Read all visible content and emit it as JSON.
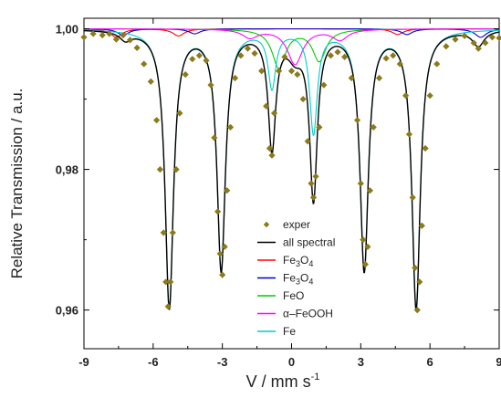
{
  "chart_data": {
    "type": "line",
    "title": "",
    "xlabel": "V / mm s",
    "xlabel_sup": "-1",
    "ylabel": "Relative Transmission / a.u.",
    "xlim": [
      -9,
      9
    ],
    "ylim": [
      0.9545,
      1.0015
    ],
    "x_ticks": [
      -9,
      -6,
      -3,
      0,
      3,
      6,
      9
    ],
    "x_tick_labels": [
      "-9",
      "-6",
      "-3",
      "0",
      "3",
      "6",
      "9"
    ],
    "y_ticks": [
      0.96,
      0.98,
      1.0
    ],
    "y_tick_labels": [
      "0,96",
      "0,98",
      "1,00"
    ],
    "grid": false,
    "legend_position": "center-right",
    "series": [
      {
        "name": "exper",
        "kind": "scatter",
        "color": "#8a7a1a",
        "points": [
          [
            -9.0,
            0.9988
          ],
          [
            -8.6,
            0.9993
          ],
          [
            -8.2,
            0.9991
          ],
          [
            -7.9,
            0.9993
          ],
          [
            -7.6,
            0.9985
          ],
          [
            -7.3,
            0.9991
          ],
          [
            -7.0,
            0.9984
          ],
          [
            -6.7,
            0.9973
          ],
          [
            -6.4,
            0.995
          ],
          [
            -6.1,
            0.9925
          ],
          [
            -5.85,
            0.987
          ],
          [
            -5.7,
            0.98
          ],
          [
            -5.55,
            0.971
          ],
          [
            -5.45,
            0.964
          ],
          [
            -5.35,
            0.9605
          ],
          [
            -5.25,
            0.964
          ],
          [
            -5.15,
            0.971
          ],
          [
            -5.0,
            0.98
          ],
          [
            -4.85,
            0.988
          ],
          [
            -4.6,
            0.9935
          ],
          [
            -4.3,
            0.9957
          ],
          [
            -4.0,
            0.9962
          ],
          [
            -3.7,
            0.9955
          ],
          [
            -3.5,
            0.992
          ],
          [
            -3.35,
            0.9845
          ],
          [
            -3.2,
            0.974
          ],
          [
            -3.1,
            0.968
          ],
          [
            -3.0,
            0.965
          ],
          [
            -2.9,
            0.969
          ],
          [
            -2.8,
            0.977
          ],
          [
            -2.65,
            0.986
          ],
          [
            -2.45,
            0.993
          ],
          [
            -2.2,
            0.9962
          ],
          [
            -1.9,
            0.9972
          ],
          [
            -1.6,
            0.9965
          ],
          [
            -1.3,
            0.994
          ],
          [
            -1.1,
            0.989
          ],
          [
            -0.95,
            0.983
          ],
          [
            -0.85,
            0.982
          ],
          [
            -0.75,
            0.988
          ],
          [
            -0.55,
            0.994
          ],
          [
            -0.3,
            0.996
          ],
          [
            0.0,
            0.994
          ],
          [
            0.25,
            0.9935
          ],
          [
            0.5,
            0.99
          ],
          [
            0.7,
            0.984
          ],
          [
            0.85,
            0.978
          ],
          [
            0.95,
            0.976
          ],
          [
            1.05,
            0.979
          ],
          [
            1.2,
            0.986
          ],
          [
            1.4,
            0.992
          ],
          [
            1.7,
            0.9962
          ],
          [
            2.0,
            0.9967
          ],
          [
            2.3,
            0.996
          ],
          [
            2.6,
            0.993
          ],
          [
            2.85,
            0.987
          ],
          [
            3.0,
            0.978
          ],
          [
            3.1,
            0.97
          ],
          [
            3.2,
            0.9665
          ],
          [
            3.3,
            0.969
          ],
          [
            3.4,
            0.977
          ],
          [
            3.55,
            0.986
          ],
          [
            3.8,
            0.993
          ],
          [
            4.1,
            0.9958
          ],
          [
            4.4,
            0.9962
          ],
          [
            4.7,
            0.995
          ],
          [
            4.95,
            0.9905
          ],
          [
            5.1,
            0.985
          ],
          [
            5.25,
            0.976
          ],
          [
            5.35,
            0.966
          ],
          [
            5.45,
            0.96
          ],
          [
            5.55,
            0.964
          ],
          [
            5.65,
            0.972
          ],
          [
            5.8,
            0.983
          ],
          [
            6.0,
            0.9905
          ],
          [
            6.3,
            0.995
          ],
          [
            6.7,
            0.9975
          ],
          [
            7.1,
            0.9985
          ],
          [
            7.5,
            0.999
          ],
          [
            7.9,
            0.998
          ],
          [
            8.1,
            0.9972
          ],
          [
            8.4,
            0.998
          ],
          [
            8.7,
            0.9988
          ],
          [
            9.0,
            0.9987
          ]
        ]
      },
      {
        "name": "all spectral",
        "kind": "line",
        "color": "#000000",
        "lines": [
          {
            "pos": -5.3,
            "depth": 0.0395,
            "width": 0.22
          },
          {
            "pos": -3.05,
            "depth": 0.034,
            "width": 0.22
          },
          {
            "pos": -0.85,
            "depth": 0.0165,
            "width": 0.2
          },
          {
            "pos": 0.95,
            "depth": 0.0235,
            "width": 0.2
          },
          {
            "pos": 3.15,
            "depth": 0.034,
            "width": 0.22
          },
          {
            "pos": 5.4,
            "depth": 0.0395,
            "width": 0.22
          },
          {
            "pos": -7.2,
            "depth": 0.0012,
            "width": 0.3
          },
          {
            "pos": 8.1,
            "depth": 0.0022,
            "width": 0.3
          },
          {
            "pos": 0.15,
            "depth": 0.003,
            "width": 0.4
          }
        ]
      },
      {
        "name": "Fe3O4",
        "kind": "line",
        "color": "#ff0000",
        "lines": [
          {
            "pos": -7.6,
            "depth": 0.0012,
            "width": 0.3
          },
          {
            "pos": -4.9,
            "depth": 0.001,
            "width": 0.3
          },
          {
            "pos": 4.6,
            "depth": 0.0008,
            "width": 0.3
          }
        ]
      },
      {
        "name": "Fe3O4",
        "kind": "line",
        "color": "#0000cc",
        "lines": [
          {
            "pos": -7.3,
            "depth": 0.0009,
            "width": 0.3
          },
          {
            "pos": -4.2,
            "depth": 0.0007,
            "width": 0.3
          },
          {
            "pos": 5.0,
            "depth": 0.0008,
            "width": 0.3
          },
          {
            "pos": 8.2,
            "depth": 0.0012,
            "width": 0.3
          }
        ]
      },
      {
        "name": "FeO",
        "kind": "line",
        "color": "#00cc00",
        "lines": [
          {
            "pos": -0.55,
            "depth": 0.0055,
            "width": 0.35
          },
          {
            "pos": 1.2,
            "depth": 0.0045,
            "width": 0.35
          }
        ]
      },
      {
        "name": "α-FeOOH",
        "kind": "line",
        "color": "#ff00ff",
        "lines": [
          {
            "pos": -1.8,
            "depth": 0.0012,
            "width": 0.4
          },
          {
            "pos": 0.15,
            "depth": 0.005,
            "width": 0.4
          },
          {
            "pos": 2.1,
            "depth": 0.0015,
            "width": 0.4
          }
        ]
      },
      {
        "name": "Fe",
        "kind": "line",
        "color": "#00cccc",
        "lines": [
          {
            "pos": -5.3,
            "depth": 0.0395,
            "width": 0.22
          },
          {
            "pos": -3.05,
            "depth": 0.034,
            "width": 0.22
          },
          {
            "pos": -0.85,
            "depth": 0.008,
            "width": 0.2
          },
          {
            "pos": 0.95,
            "depth": 0.0145,
            "width": 0.2
          },
          {
            "pos": 3.15,
            "depth": 0.034,
            "width": 0.22
          },
          {
            "pos": 5.4,
            "depth": 0.0395,
            "width": 0.22
          }
        ]
      }
    ],
    "legend": [
      {
        "label": "exper",
        "symbol": "diamond",
        "color": "#8a7a1a"
      },
      {
        "label": "all spectral",
        "symbol": "line",
        "color": "#000000"
      },
      {
        "label": "Fe",
        "sub": "3",
        "tail": "O",
        "sub2": "4",
        "symbol": "line",
        "color": "#ff0000"
      },
      {
        "label": "Fe",
        "sub": "3",
        "tail": "O",
        "sub2": "4",
        "symbol": "line",
        "color": "#0000cc"
      },
      {
        "label": "FeO",
        "symbol": "line",
        "color": "#00cc00"
      },
      {
        "label": "α–FeOOH",
        "symbol": "line",
        "color": "#ff00ff"
      },
      {
        "label": "Fe",
        "symbol": "line",
        "color": "#00cccc"
      }
    ]
  }
}
